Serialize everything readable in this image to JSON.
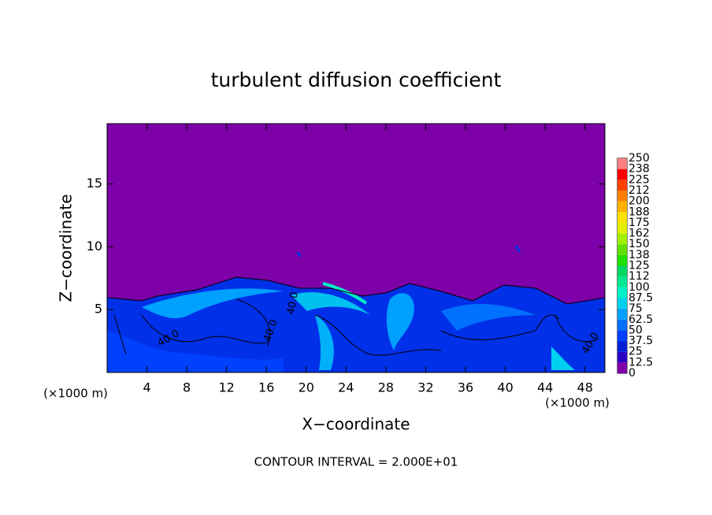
{
  "chart_data": {
    "type": "contour",
    "title": "turbulent diffusion coefficient",
    "xlabel": "X−coordinate",
    "ylabel": "Z−coordinate",
    "x_unit": "(×1000 m)",
    "footnote": "CONTOUR INTERVAL = 2.000E+01",
    "xlim": [
      0,
      50
    ],
    "xticks": [
      4,
      8,
      12,
      16,
      20,
      24,
      28,
      32,
      36,
      40,
      44,
      48
    ],
    "ylim": [
      0,
      19.8
    ],
    "yticks": [
      5,
      10,
      15
    ],
    "contour_labels": [
      "40.0",
      "40.0",
      "40.0",
      "40.0"
    ],
    "colorbar_ticks": [
      0,
      12.5,
      25,
      37.5,
      50,
      62.5,
      75,
      87.5,
      100,
      {
        "value": 112.5,
        "label": "112"
      },
      125,
      {
        "value": 137.5,
        "label": "138"
      },
      150,
      {
        "value": 162.5,
        "label": "162"
      },
      175,
      {
        "value": 187.5,
        "label": "188"
      },
      200,
      {
        "value": 212.5,
        "label": "212"
      },
      225,
      {
        "value": 237.5,
        "label": "238"
      },
      250
    ],
    "colors": [
      "#7d00a8",
      "#2a00c4",
      "#0020d8",
      "#0040ff",
      "#0070ff",
      "#00a0ff",
      "#00d0f0",
      "#00f0c8",
      "#00e890",
      "#00d860",
      "#20e000",
      "#60e000",
      "#a0f000",
      "#e0f000",
      "#ffe000",
      "#ffb000",
      "#ff8000",
      "#ff4000",
      "#ff0000",
      "#ff8080"
    ]
  }
}
